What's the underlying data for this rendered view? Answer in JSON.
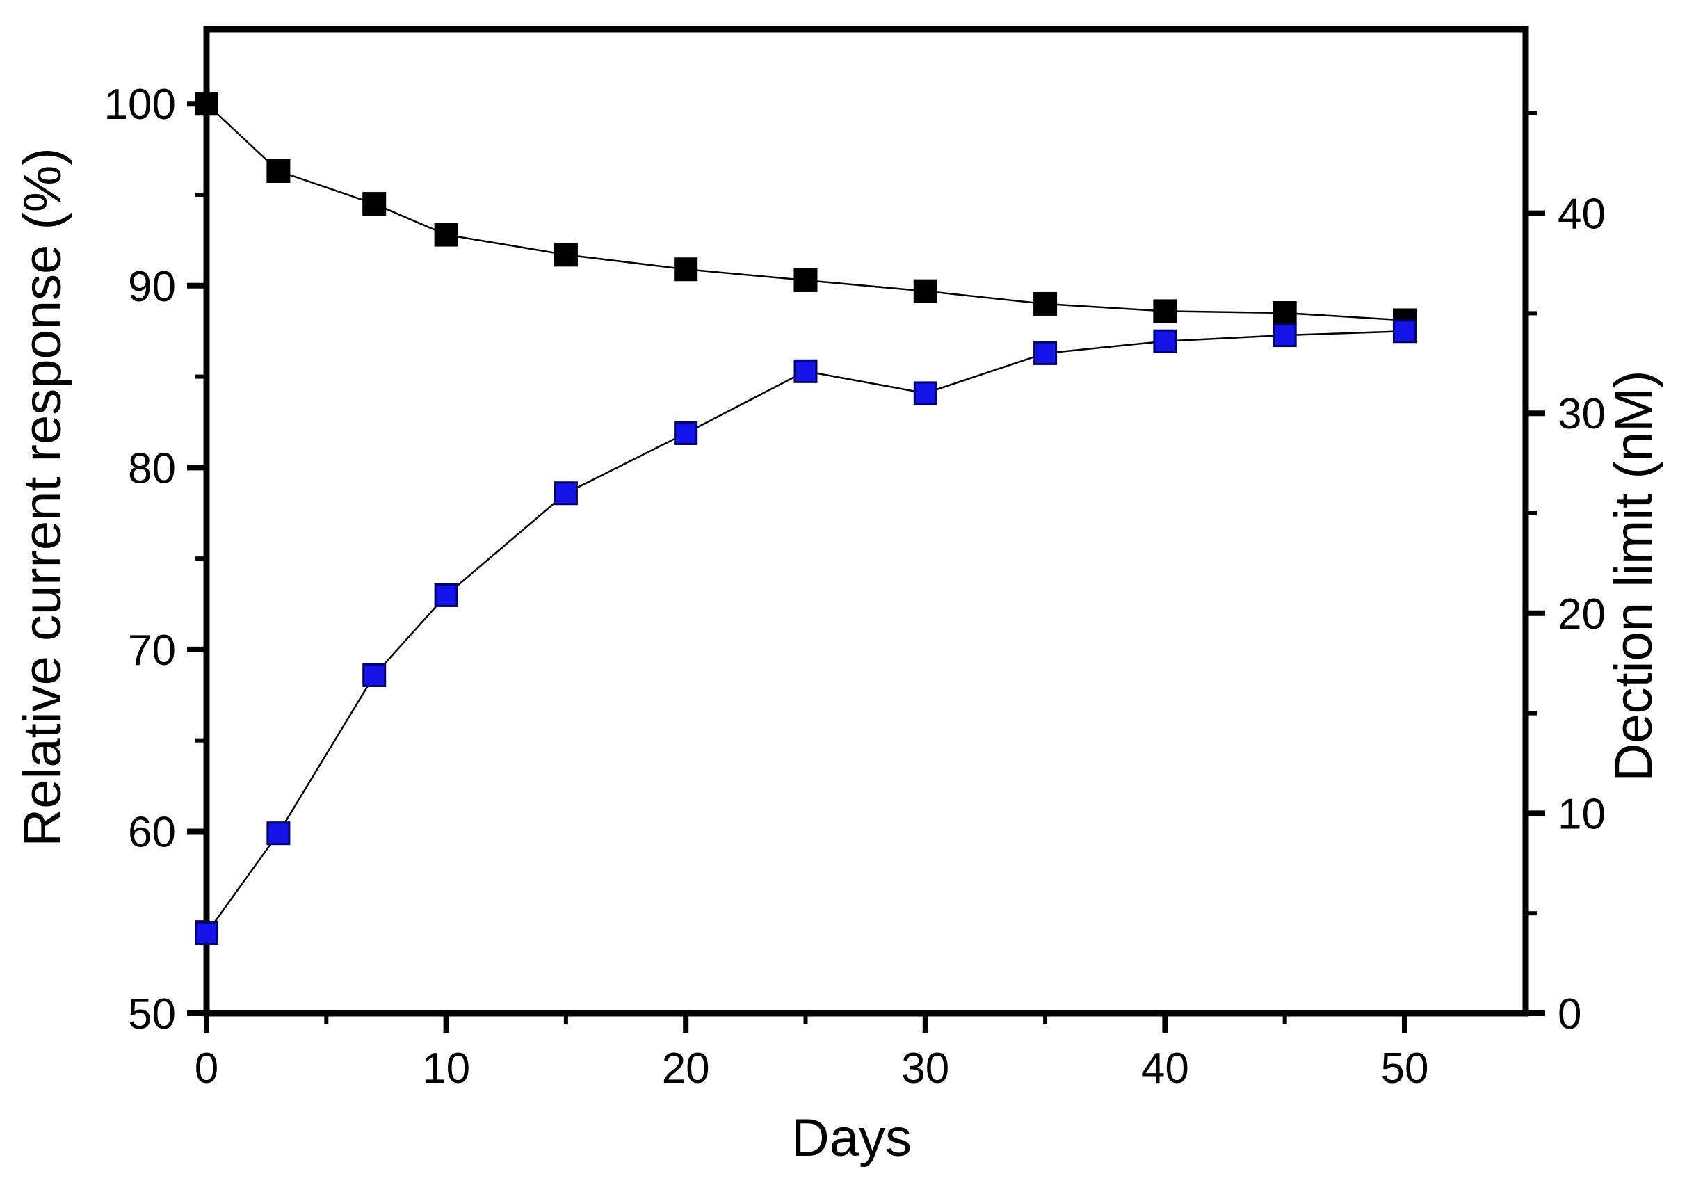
{
  "figure": {
    "background_color": "#ffffff",
    "frame_color": "#000000",
    "text_color": "#000000"
  },
  "chart_data": {
    "type": "line",
    "title": "",
    "xlabel": "Days",
    "ylabel_left": "Relative current response (%)",
    "ylabel_right": "Dection limit (nM)",
    "x": [
      0,
      3,
      7,
      10,
      15,
      20,
      25,
      30,
      35,
      40,
      45,
      50
    ],
    "series": [
      {
        "name": "relative-current-response",
        "axis": "left",
        "marker": "square",
        "marker_color": "#000000",
        "marker_border": "#000000",
        "line_color": "#000000",
        "values": [
          100.0,
          96.3,
          94.5,
          92.8,
          91.7,
          90.9,
          90.3,
          89.7,
          89.0,
          88.6,
          88.5,
          88.1
        ]
      },
      {
        "name": "detection-limit",
        "axis": "right",
        "marker": "square",
        "marker_color": "#1414e8",
        "marker_border": "#000070",
        "line_color": "#000000",
        "values": [
          4.0,
          9.0,
          16.9,
          20.9,
          26.0,
          29.0,
          32.1,
          31.0,
          33.0,
          33.6,
          33.9,
          34.1
        ]
      }
    ],
    "x_range": [
      0,
      55.05
    ],
    "y_left_range": [
      50,
      104.1
    ],
    "y_right_range": [
      0,
      49.2
    ],
    "x_major_ticks": [
      0,
      10,
      20,
      30,
      40,
      50
    ],
    "x_minor_ticks": [
      5,
      15,
      25,
      35,
      45
    ],
    "y_left_major_ticks": [
      50,
      60,
      70,
      80,
      90,
      100
    ],
    "y_left_minor_ticks": [
      55,
      65,
      75,
      85,
      95
    ],
    "y_right_major_ticks": [
      0,
      10,
      20,
      30,
      40
    ],
    "y_right_minor_ticks": [
      5,
      15,
      25,
      35,
      45
    ],
    "grid": false,
    "legend": "none"
  }
}
